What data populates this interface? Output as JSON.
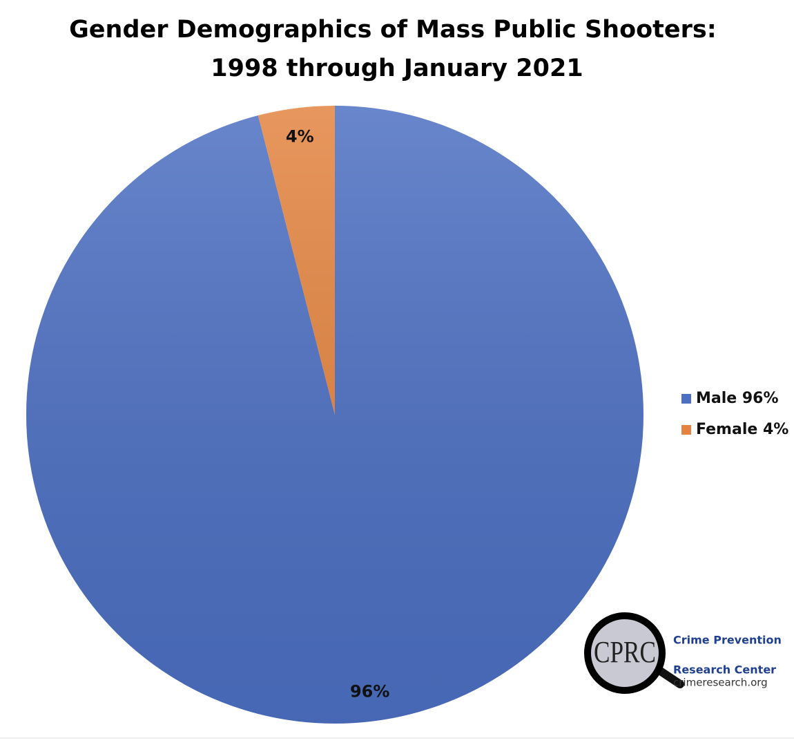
{
  "chart_data": {
    "type": "pie",
    "title": "Gender Demographics of Mass Public Shooters: 1998 through January 2021",
    "categories": [
      "Male 96%",
      "Female 4%"
    ],
    "values": [
      96,
      4
    ],
    "value_labels": [
      "96%",
      "4%"
    ],
    "colors": [
      "#4c6fc2",
      "#e3833f"
    ],
    "legend": "right"
  },
  "logo": {
    "mark": "CPRC",
    "line1": "Crime Prevention",
    "line2": "Research Center",
    "url": "crimeresearch.org"
  }
}
